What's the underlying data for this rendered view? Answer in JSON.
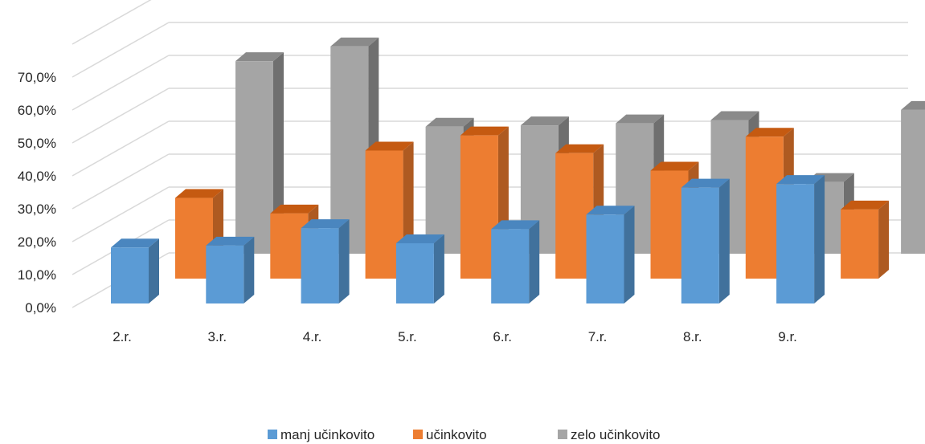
{
  "chart_data": {
    "type": "bar",
    "title": "",
    "xlabel": "",
    "ylabel": "",
    "ylim": [
      0,
      70
    ],
    "y_ticks": [
      "0,0%",
      "10,0%",
      "20,0%",
      "30,0%",
      "40,0%",
      "50,0%",
      "60,0%",
      "70,0%"
    ],
    "categories": [
      "2.r.",
      "3.r.",
      "4.r.",
      "5.r.",
      "6.r.",
      "7.r.",
      "8.r.",
      "9.r."
    ],
    "series": [
      {
        "name": "manj učinkovito",
        "values": [
          17.0,
          17.6,
          22.9,
          18.3,
          22.6,
          27.0,
          35.2,
          36.3
        ],
        "color": "#5B9BD5",
        "side": "#41719C",
        "top": "#4A86BF"
      },
      {
        "name": "učinkovito",
        "values": [
          24.5,
          19.8,
          38.9,
          43.5,
          38.1,
          32.8,
          43.1,
          21.0
        ],
        "color": "#ED7D31",
        "side": "#AE5A21",
        "top": "#C55A11"
      },
      {
        "name": "zelo učinkovito",
        "values": [
          58.5,
          63.0,
          38.6,
          39.0,
          39.6,
          40.6,
          21.8,
          43.7
        ],
        "color": "#A5A5A5",
        "side": "#6F6F6F",
        "top": "#8A8A8A"
      }
    ],
    "grid": true,
    "legend": "bottom",
    "projection": "3d-clustered-columns"
  }
}
